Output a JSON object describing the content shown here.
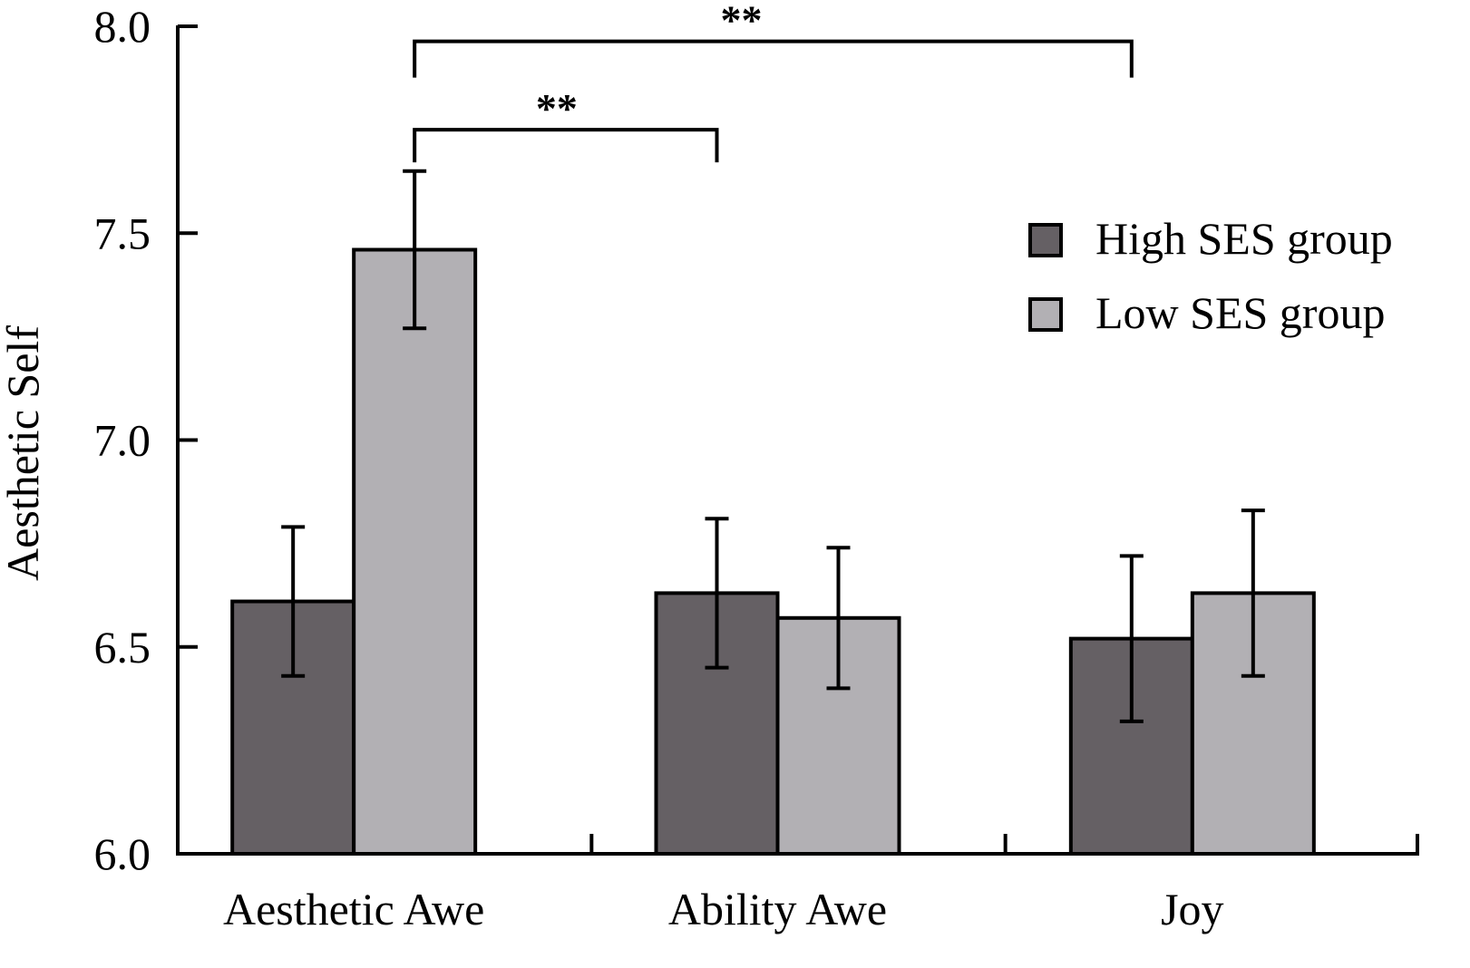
{
  "chart_data": {
    "type": "bar",
    "title": "",
    "xlabel": "",
    "ylabel": "Aesthetic Self",
    "ylim": [
      6.0,
      8.0
    ],
    "yticks": [
      6.0,
      6.5,
      7.0,
      7.5,
      8.0
    ],
    "ytick_labels": [
      "6.0",
      "6.5",
      "7.0",
      "7.5",
      "8.0"
    ],
    "grid": false,
    "categories": [
      "Aesthetic Awe",
      "Ability Awe",
      "Joy"
    ],
    "series": [
      {
        "name": "High SES group",
        "color": "#656064",
        "values": [
          6.61,
          6.63,
          6.52
        ],
        "errors": [
          0.18,
          0.18,
          0.2
        ]
      },
      {
        "name": "Low SES group",
        "color": "#b2b0b4",
        "values": [
          7.46,
          6.57,
          6.63
        ],
        "errors": [
          0.19,
          0.17,
          0.2
        ]
      }
    ],
    "legend": {
      "position": "top-right",
      "entries": [
        "High SES group",
        "Low SES group"
      ]
    },
    "annotations": [
      {
        "label": "**",
        "from": {
          "category": "Aesthetic Awe",
          "series": "Low SES group"
        },
        "to": {
          "category": "Ability Awe",
          "series": "High SES group"
        },
        "level": 7.75
      },
      {
        "label": "**",
        "from": {
          "category": "Aesthetic Awe",
          "series": "Low SES group"
        },
        "to": {
          "category": "Joy",
          "series": "High SES group"
        },
        "level": 7.99
      }
    ]
  }
}
